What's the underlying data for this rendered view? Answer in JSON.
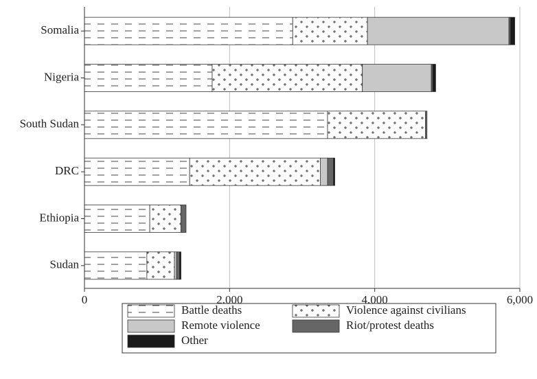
{
  "chart_data": {
    "type": "bar",
    "orientation": "horizontal",
    "stacked": true,
    "categories": [
      "Somalia",
      "Nigeria",
      "South Sudan",
      "DRC",
      "Ethiopia",
      "Sudan"
    ],
    "series": [
      {
        "name": "Battle deaths",
        "values": [
          2870,
          1760,
          3350,
          1450,
          900,
          860
        ]
      },
      {
        "name": "Violence against civilians",
        "values": [
          1030,
          2070,
          1350,
          1800,
          430,
          380
        ]
      },
      {
        "name": "Remote violence",
        "values": [
          1950,
          950,
          0,
          100,
          0,
          30
        ]
      },
      {
        "name": "Riot/protest deaths",
        "values": [
          20,
          20,
          20,
          80,
          70,
          40
        ]
      },
      {
        "name": "Other",
        "values": [
          60,
          40,
          0,
          20,
          0,
          20
        ]
      }
    ],
    "xlim": [
      0,
      6000
    ],
    "xticks": [
      0,
      2000,
      4000,
      6000
    ],
    "xtick_labels": [
      "0",
      "2,000",
      "4,000",
      "6,000"
    ],
    "grid": "vertical",
    "legend_position": "bottom",
    "colors": {
      "Battle deaths": "#ffffff",
      "Violence against civilians": "#ffffff",
      "Remote violence": "#c8c8c8",
      "Riot/protest deaths": "#666666",
      "Other": "#1a1a1a"
    }
  }
}
